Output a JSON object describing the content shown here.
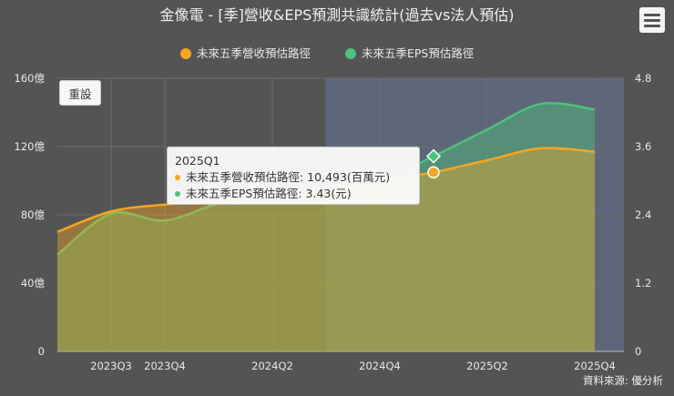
{
  "title": "金像電 - [季]營收&EPS預測共識統計(過去vs法人預估)",
  "reset_label": "重設",
  "source": "資料來源: 優分析",
  "colors": {
    "background": "#545454",
    "forecast_band": "#5d6779",
    "revenue": "#f5a623",
    "eps": "#4cc27a"
  },
  "legend": [
    {
      "name": "未來五季營收預估路徑",
      "color": "#f5a623"
    },
    {
      "name": "未來五季EPS預估路徑",
      "color": "#4cc27a"
    }
  ],
  "tooltip": {
    "title": "2025Q1",
    "rows": [
      {
        "color": "#f5a623",
        "text": "未來五季營收預估路徑: 10,493(百萬元)"
      },
      {
        "color": "#4cc27a",
        "text": "未來五季EPS預估路徑: 3.43(元)"
      }
    ]
  },
  "chart_data": {
    "type": "area",
    "categories": [
      "2023Q2",
      "2023Q3",
      "2023Q4",
      "2024Q1",
      "2024Q2",
      "2024Q3",
      "2024Q4",
      "2025Q1",
      "2025Q2",
      "2025Q3",
      "2025Q4"
    ],
    "x_tick_labels": [
      "2023Q3",
      "2023Q4",
      "2024Q2",
      "2024Q4",
      "2025Q2",
      "2025Q4"
    ],
    "y_left": {
      "ticks": [
        "0",
        "40億",
        "80億",
        "120億",
        "160億"
      ],
      "range": [
        0,
        160
      ],
      "unit": "億"
    },
    "y_right": {
      "ticks": [
        "0",
        "1.2",
        "2.4",
        "3.6",
        "4.8"
      ],
      "range": [
        0,
        4.8
      ]
    },
    "forecast_start": "2024Q3",
    "series": [
      {
        "name": "未來五季營收預估路徑",
        "axis": "left",
        "values": [
          70,
          82,
          86,
          88,
          89,
          94,
          100,
          104.93,
          112,
          119,
          117
        ]
      },
      {
        "name": "未來五季EPS預估路徑",
        "axis": "right",
        "values": [
          1.7,
          2.42,
          2.3,
          2.6,
          2.75,
          2.9,
          3.0,
          3.43,
          3.9,
          4.35,
          4.25
        ]
      }
    ]
  }
}
